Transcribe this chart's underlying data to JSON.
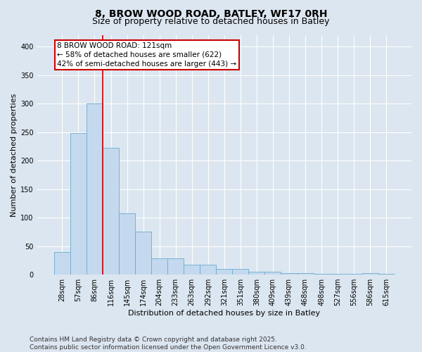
{
  "title": "8, BROW WOOD ROAD, BATLEY, WF17 0RH",
  "subtitle": "Size of property relative to detached houses in Batley",
  "xlabel": "Distribution of detached houses by size in Batley",
  "ylabel": "Number of detached properties",
  "bar_color": "#c5d9ee",
  "bar_edge_color": "#6aabd2",
  "background_color": "#dce6f0",
  "plot_bg_color": "#dce6f0",
  "grid_color": "#ffffff",
  "categories": [
    "28sqm",
    "57sqm",
    "86sqm",
    "116sqm",
    "145sqm",
    "174sqm",
    "204sqm",
    "233sqm",
    "263sqm",
    "292sqm",
    "321sqm",
    "351sqm",
    "380sqm",
    "409sqm",
    "439sqm",
    "468sqm",
    "498sqm",
    "527sqm",
    "556sqm",
    "586sqm",
    "615sqm"
  ],
  "values": [
    40,
    248,
    300,
    222,
    107,
    75,
    28,
    29,
    17,
    17,
    10,
    10,
    5,
    5,
    2,
    2,
    1,
    1,
    1,
    2,
    1
  ],
  "ylim": [
    0,
    420
  ],
  "yticks": [
    0,
    50,
    100,
    150,
    200,
    250,
    300,
    350,
    400
  ],
  "annotation_text": "8 BROW WOOD ROAD: 121sqm\n← 58% of detached houses are smaller (622)\n42% of semi-detached houses are larger (443) →",
  "vline_x": 2.5,
  "vline_color": "#cc0000",
  "annotation_box_color": "#cc0000",
  "footer_text": "Contains HM Land Registry data © Crown copyright and database right 2025.\nContains public sector information licensed under the Open Government Licence v3.0.",
  "title_fontsize": 10,
  "subtitle_fontsize": 9,
  "xlabel_fontsize": 8,
  "ylabel_fontsize": 8,
  "tick_fontsize": 7,
  "annotation_fontsize": 7.5,
  "footer_fontsize": 6.5
}
